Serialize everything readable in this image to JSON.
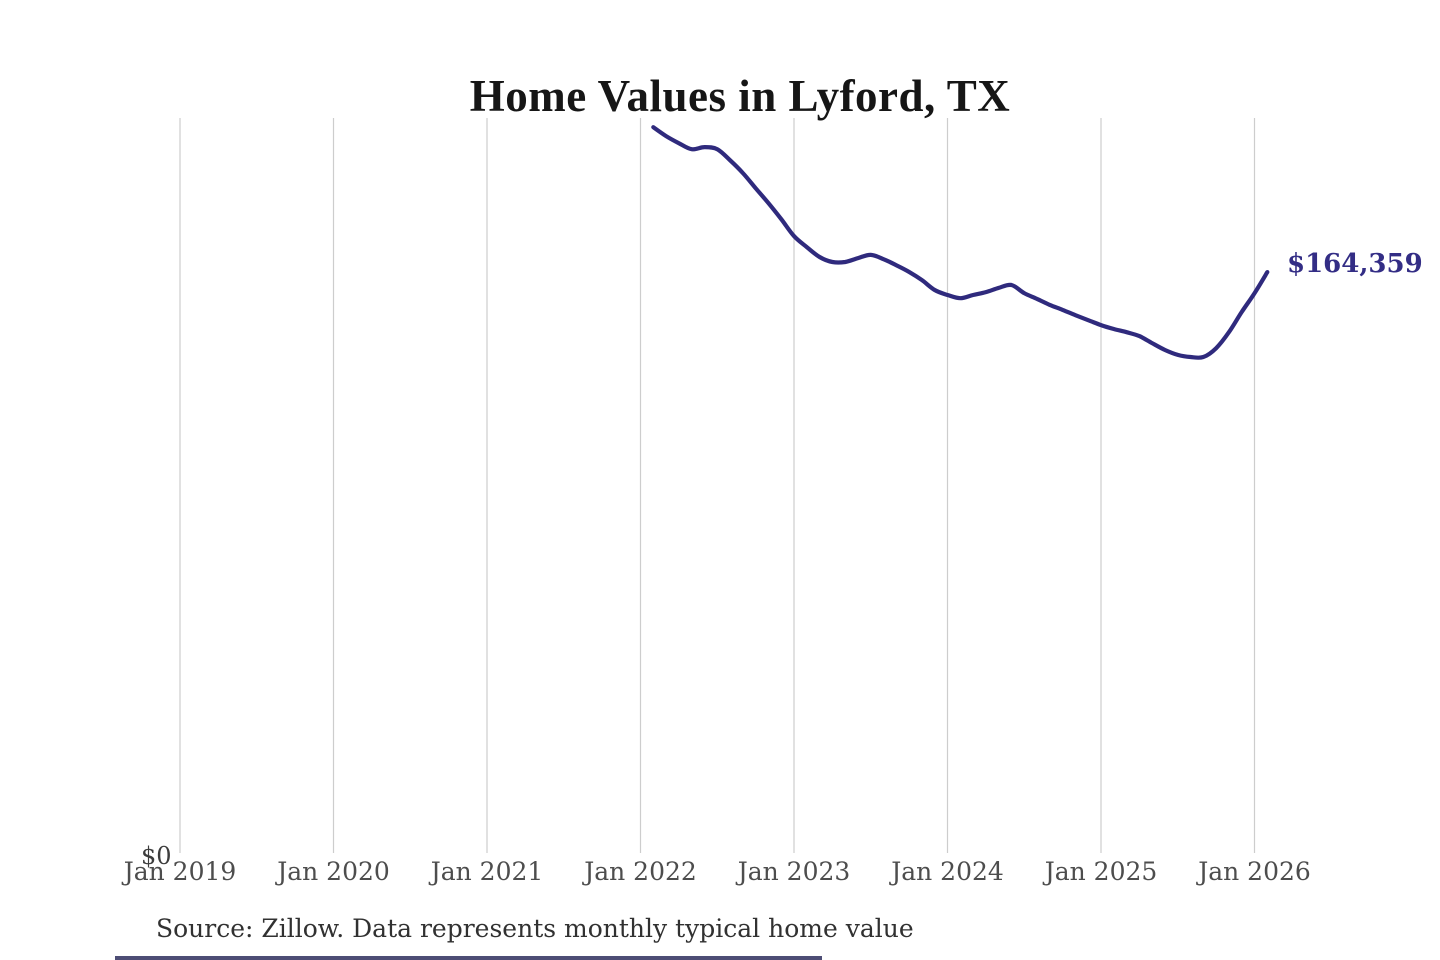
{
  "title": "Home Values in Lyford, TX",
  "annotations": {
    "current_value_label": "$164,359",
    "y_zero_label": "$0"
  },
  "source_note": "Source: Zillow. Data represents monthly typical home value",
  "x_axis_labels": [
    "Jan 2019",
    "Jan 2020",
    "Jan 2021",
    "Jan 2022",
    "Jan 2023",
    "Jan 2024",
    "Jan 2025",
    "Jan 2026"
  ],
  "colors": {
    "line": "#2f2a7d",
    "value_label": "#332d85",
    "gridline": "#cdcdcd",
    "axis_label": "#4d4d4d",
    "title": "#161616",
    "source": "#313131",
    "bottom_strip": "#3a3a66"
  },
  "chart_data": {
    "type": "line",
    "title": "Home Values in Lyford, TX",
    "xlabel": "",
    "ylabel": "",
    "grid": "vertical-only",
    "legend": "none",
    "x_tick_labels": [
      "Jan 2019",
      "Jan 2020",
      "Jan 2021",
      "Jan 2022",
      "Jan 2023",
      "Jan 2024",
      "Jan 2025",
      "Jan 2026"
    ],
    "xlim_months": [
      "2019-01",
      "2026-02"
    ],
    "ylim": [
      0,
      207800
    ],
    "end_annotation": {
      "text": "$164,359",
      "value": 164359,
      "x": "2026-02"
    },
    "series": [
      {
        "name": "Monthly typical home value (Zillow)",
        "color": "#2f2a7d",
        "x": [
          "2022-02",
          "2022-03",
          "2022-04",
          "2022-05",
          "2022-06",
          "2022-07",
          "2022-08",
          "2022-09",
          "2022-10",
          "2022-11",
          "2022-12",
          "2023-01",
          "2023-02",
          "2023-03",
          "2023-04",
          "2023-05",
          "2023-06",
          "2023-07",
          "2023-08",
          "2023-09",
          "2023-10",
          "2023-11",
          "2023-12",
          "2024-01",
          "2024-02",
          "2024-03",
          "2024-04",
          "2024-05",
          "2024-06",
          "2024-07",
          "2024-08",
          "2024-09",
          "2024-10",
          "2024-11",
          "2024-12",
          "2025-01",
          "2025-02",
          "2025-03",
          "2025-04",
          "2025-05",
          "2025-06",
          "2025-07",
          "2025-08",
          "2025-09",
          "2025-10",
          "2025-11",
          "2025-12",
          "2026-01",
          "2026-02"
        ],
        "values": [
          205200,
          202700,
          200700,
          199000,
          199600,
          199000,
          195900,
          192300,
          188000,
          183800,
          179300,
          174500,
          171400,
          168600,
          167200,
          167200,
          168300,
          169200,
          168000,
          166300,
          164400,
          162100,
          159300,
          157900,
          157000,
          157900,
          158700,
          159900,
          160700,
          158400,
          156800,
          155100,
          153700,
          152200,
          150800,
          149400,
          148300,
          147400,
          146300,
          144300,
          142400,
          141000,
          140400,
          140400,
          142900,
          147400,
          153100,
          158400,
          164359
        ]
      }
    ]
  }
}
